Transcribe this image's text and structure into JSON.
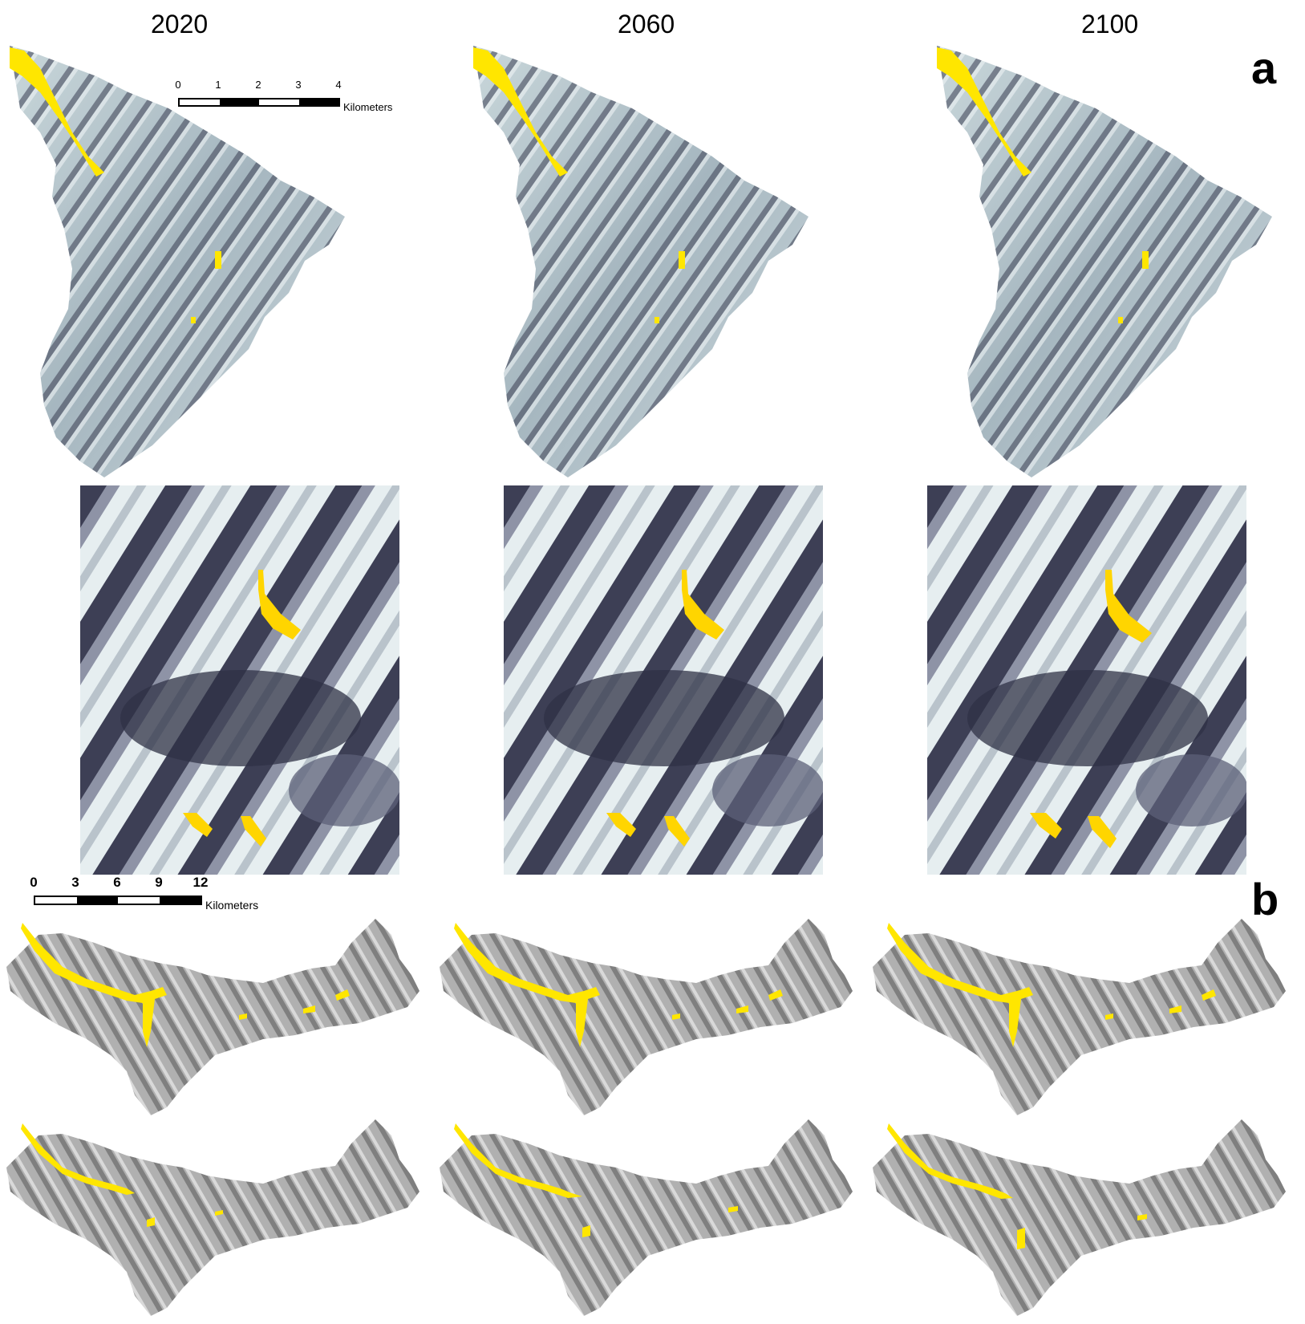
{
  "years": [
    "2020",
    "2060",
    "2100"
  ],
  "panels": {
    "a": "a",
    "b": "b"
  },
  "scale_a": {
    "ticks": [
      "0",
      "1",
      "2",
      "3",
      "4"
    ],
    "unit": "Kilometers"
  },
  "scale_b": {
    "ticks": [
      "0",
      "3",
      "6",
      "9",
      "12"
    ],
    "unit": "Kilometers"
  },
  "colors": {
    "hillshade_light": "#dfe8eb",
    "hillshade_mid": "#9fb0ba",
    "hillshade_dark": "#2f3145",
    "relief_grey": "#a6a6a6",
    "relief_dark": "#555555",
    "highlight_yellow": "#ffe600"
  }
}
